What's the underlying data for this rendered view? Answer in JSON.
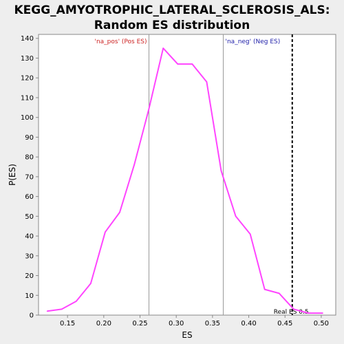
{
  "title_line1": "KEGG_AMYOTROPHIC_LATERAL_SCLEROSIS_ALS:",
  "title_line2": "Random ES distribution",
  "chart_data": {
    "type": "line",
    "xlabel": "ES",
    "ylabel": "P(ES)",
    "xlim": [
      0.11,
      0.52
    ],
    "ylim": [
      0,
      142
    ],
    "xticks": [
      "0.15",
      "0.20",
      "0.25",
      "0.30",
      "0.35",
      "0.40",
      "0.45",
      "0.50"
    ],
    "xtick_values": [
      0.15,
      0.2,
      0.25,
      0.3,
      0.35,
      0.4,
      0.45,
      0.5
    ],
    "yticks": [
      "0",
      "10",
      "20",
      "30",
      "40",
      "50",
      "60",
      "70",
      "80",
      "90",
      "100",
      "110",
      "120",
      "130",
      "140"
    ],
    "ytick_values": [
      0,
      10,
      20,
      30,
      40,
      50,
      60,
      70,
      80,
      90,
      100,
      110,
      120,
      130,
      140
    ],
    "series": [
      {
        "color": "#ff44ff",
        "x": [
          0.122,
          0.142,
          0.162,
          0.182,
          0.202,
          0.222,
          0.242,
          0.262,
          0.282,
          0.302,
          0.322,
          0.342,
          0.362,
          0.382,
          0.402,
          0.422,
          0.442,
          0.462,
          0.482,
          0.502
        ],
        "y": [
          2,
          3,
          7,
          16,
          42,
          52,
          76,
          104,
          135,
          127,
          127,
          118,
          73,
          50,
          41,
          13,
          11,
          3,
          1,
          1
        ]
      }
    ],
    "vlines": [
      {
        "x": 0.262,
        "color": "#999999",
        "label": "'na_pos' (Pos ES)",
        "label_color": "#cc2222",
        "label_side": "left"
      },
      {
        "x": 0.364,
        "color": "#999999",
        "label": "'na_neg' (Neg ES)",
        "label_color": "#2222aa",
        "label_side": "right"
      }
    ],
    "real_es": {
      "x": 0.46,
      "label": "Real ES 0.5",
      "color": "#000000",
      "style": "dashed"
    },
    "grid": false
  }
}
